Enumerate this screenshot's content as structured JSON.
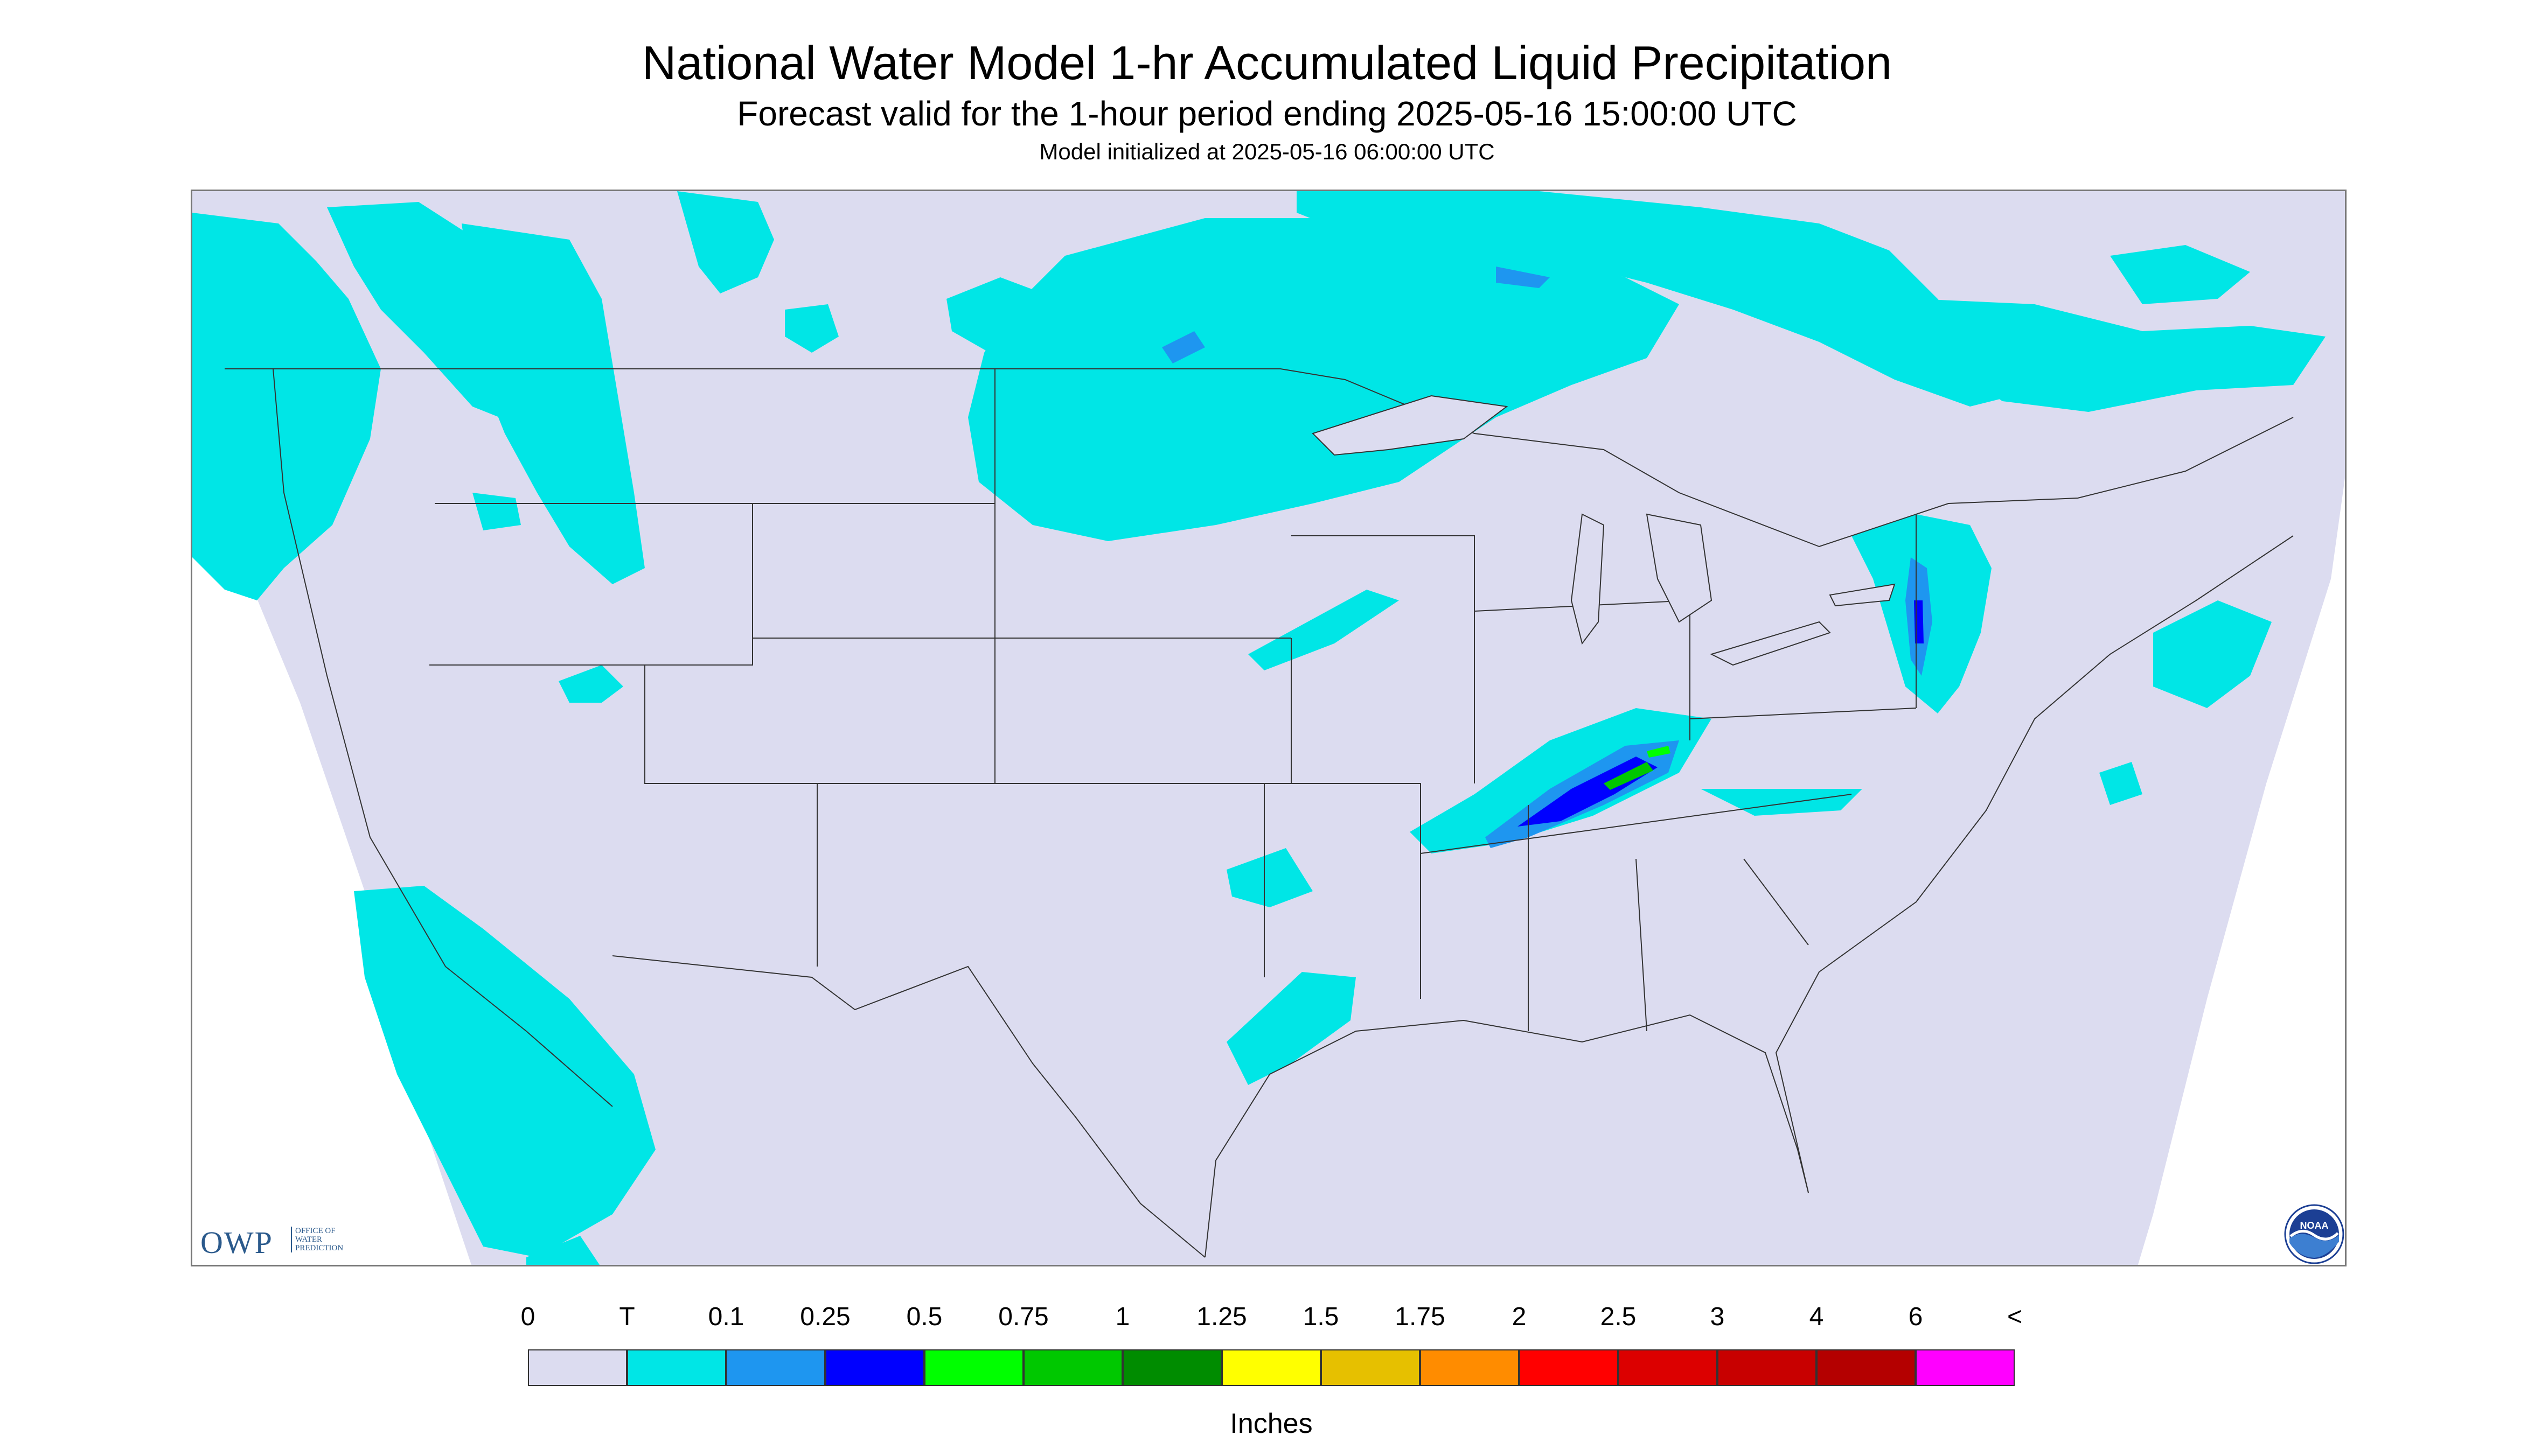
{
  "title": "National Water Model 1-hr Accumulated Liquid Precipitation",
  "subtitle": "Forecast valid for the 1-hour period ending 2025-05-16 15:00:00 UTC",
  "init_line": "Model initialized at 2025-05-16 06:00:00 UTC",
  "colors": {
    "background": "#dcdcf0",
    "trace": "#00e6e6",
    "light": "#1e96f0",
    "blue": "#0000ff",
    "green": "#00c800",
    "border_lines": "#333333",
    "outside": "#ffffff"
  },
  "logos": {
    "owp_mark": "OWP",
    "owp_subtext": [
      "OFFICE OF",
      "WATER",
      "PREDICTION"
    ],
    "noaa_mark": "NOAA"
  },
  "legend": {
    "unit": "Inches",
    "ticks": [
      "0",
      "T",
      "0.1",
      "0.25",
      "0.5",
      "0.75",
      "1",
      "1.25",
      "1.5",
      "1.75",
      "2",
      "2.5",
      "3",
      "4",
      "6",
      "<"
    ],
    "colors": [
      "#dcdcf0",
      "#00e6e6",
      "#1e96f0",
      "#0000ff",
      "#00ff00",
      "#00c800",
      "#008c00",
      "#ffff00",
      "#e6c000",
      "#ff8c00",
      "#ff0000",
      "#dc0000",
      "#c80000",
      "#b40000",
      "#ff00ff",
      "#9650c8"
    ]
  }
}
